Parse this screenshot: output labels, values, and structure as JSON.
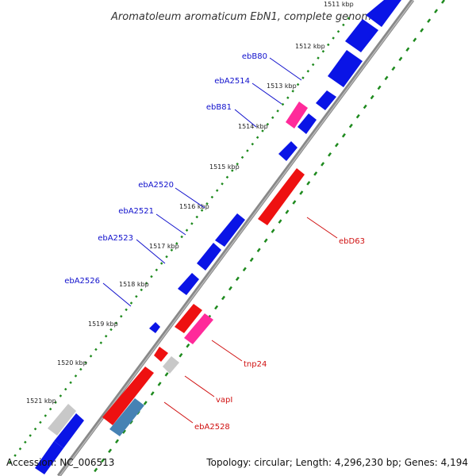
{
  "title": "Aromatoleum aromaticum EbN1, complete genome",
  "footer": {
    "accession": "Accession: NC_006513",
    "topology": "Topology: circular; Length: 4,296,230 bp; Genes: 4,194"
  },
  "colors": {
    "backbone": "#888888",
    "tick": "#1e8a1e",
    "cds": "#0a14e6",
    "trna": "#ff2a9a",
    "red_gene": "#ee1111",
    "grey_gene": "#c8c8c8",
    "steel_gene": "#4682b4",
    "label_blue": "#1010cc",
    "label_red": "#d01010"
  },
  "ticks": [
    "1511 kbp",
    "1512 kbp",
    "1513 kbp",
    "1514 kbp",
    "1515 kbp",
    "1516 kbp",
    "1517 kbp",
    "1518 kbp",
    "1519 kbp",
    "1520 kbp",
    "1521 kbp"
  ],
  "gene_labels": {
    "ebB80": "ebB80",
    "ebA2514": "ebA2514",
    "ebB81": "ebB81",
    "ebA2520": "ebA2520",
    "ebA2521": "ebA2521",
    "ebA2523": "ebA2523",
    "ebA2526": "ebA2526",
    "ebD63": "ebD63",
    "tnp24": "tnp24",
    "vapI": "vapI",
    "ebA2528": "ebA2528"
  }
}
